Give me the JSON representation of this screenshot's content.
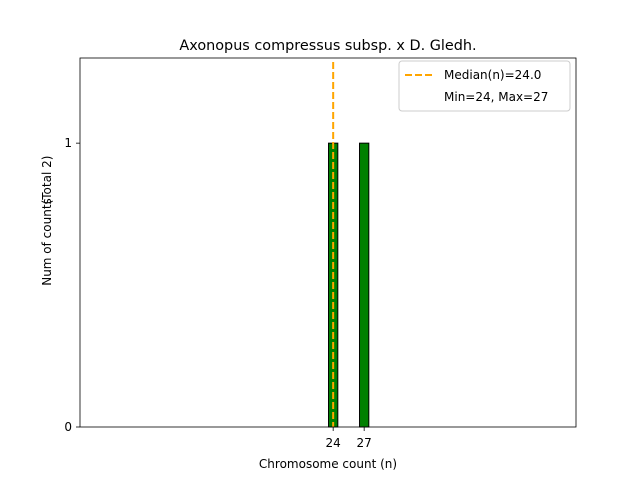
{
  "chart_data": {
    "type": "bar",
    "title": "Axonopus compressus subsp. x D. Gledh.",
    "xlabel": "Chromosome count (n)",
    "ylabel": "Num of counts",
    "ylabel_total": "(Total 2)",
    "x": [
      24,
      27
    ],
    "values": [
      1,
      1
    ],
    "xticks": [
      "24",
      "27"
    ],
    "yticks": [
      "0",
      "1"
    ],
    "ylim": [
      0,
      1.3
    ],
    "xlim": [
      -0.5,
      47.5
    ],
    "bar_width": 0.9,
    "bar_color": "#008000",
    "median": 24.0,
    "median_color": "#ffa500",
    "legend": {
      "placement": "top-right",
      "entries": [
        "Median(n)=24.0",
        "Min=24, Max=27"
      ]
    },
    "grid": false
  }
}
